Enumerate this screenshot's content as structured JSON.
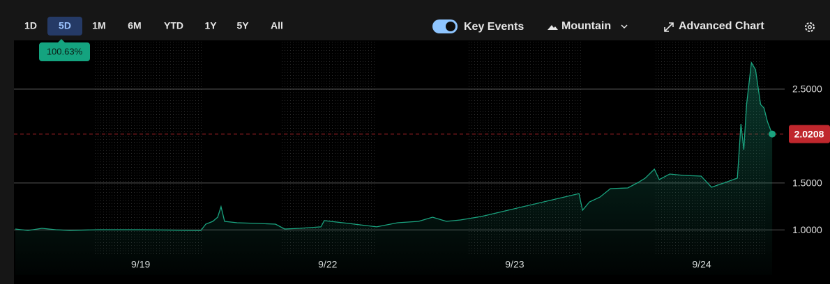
{
  "toolbar": {
    "ranges": [
      "1D",
      "5D",
      "1M",
      "6M",
      "YTD",
      "1Y",
      "5Y",
      "All"
    ],
    "selected": 1,
    "change": "100.63%",
    "key_events": "Key Events",
    "chart_style": "Mountain",
    "advanced": "Advanced Chart"
  },
  "chart_data": {
    "type": "area",
    "color": "#1aa37f",
    "x": [
      0.33,
      0.397,
      0.472,
      0.546,
      0.621,
      0.77,
      0.994,
      1.322,
      1.348,
      1.386,
      1.412,
      1.43,
      1.449,
      1.516,
      1.628,
      1.721,
      1.77,
      1.852,
      1.964,
      1.982,
      2.113,
      2.262,
      2.374,
      2.486,
      2.561,
      2.635,
      2.71,
      2.822,
      3.344,
      3.363,
      3.4,
      3.456,
      3.512,
      3.605,
      3.661,
      3.698,
      3.747,
      3.773,
      3.829,
      3.904,
      3.997,
      4.053,
      4.128,
      4.191,
      4.21,
      4.225,
      4.24,
      4.266,
      4.288,
      4.315,
      4.333,
      4.352,
      4.377
    ],
    "values": [
      1.009,
      0.994,
      1.017,
      1.002,
      0.994,
      1.002,
      1.002,
      0.994,
      1.061,
      1.091,
      1.135,
      1.247,
      1.091,
      1.076,
      1.069,
      1.061,
      1.009,
      1.017,
      1.032,
      1.098,
      1.069,
      1.032,
      1.076,
      1.091,
      1.135,
      1.091,
      1.106,
      1.143,
      1.387,
      1.209,
      1.298,
      1.35,
      1.439,
      1.447,
      1.506,
      1.551,
      1.647,
      1.536,
      1.595,
      1.58,
      1.573,
      1.454,
      1.506,
      1.551,
      2.129,
      1.854,
      2.336,
      2.781,
      2.707,
      2.336,
      2.299,
      2.151,
      2.0208
    ],
    "xlim": [
      0.33,
      4.44
    ],
    "xticks": [
      {
        "value": 1,
        "label": "9/19"
      },
      {
        "value": 2,
        "label": "9/22"
      },
      {
        "value": 3,
        "label": "9/23"
      },
      {
        "value": 4,
        "label": "9/24"
      }
    ],
    "ylim": [
      0.52,
      3.0
    ],
    "yticks": [
      {
        "value": 1.0,
        "label": "1.0000"
      },
      {
        "value": 1.5,
        "label": "1.5000"
      },
      {
        "value": 2.5,
        "label": "2.5000"
      }
    ],
    "last_value": 2.0208,
    "last_color": "#c0272d",
    "grid": true
  }
}
